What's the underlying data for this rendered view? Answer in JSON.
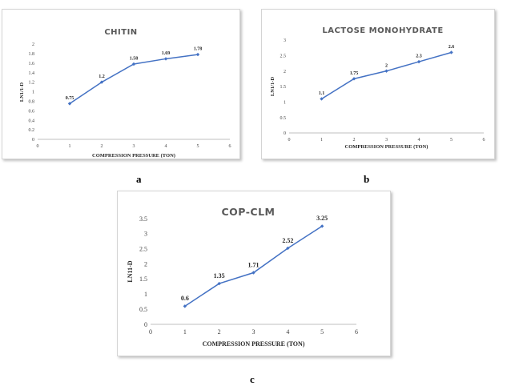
{
  "captions": {
    "a": "a",
    "b": "b",
    "c": "c"
  },
  "chart_data": [
    {
      "type": "line",
      "title": "CHITIN",
      "xlabel": "COMPRESSION PRESSURE (TON)",
      "ylabel": "LN1/1-D",
      "x_ticks": [
        "0",
        "1",
        "2",
        "3",
        "4",
        "5",
        "6"
      ],
      "y_ticks": [
        "0",
        "0.2",
        "0.4",
        "0.6",
        "0.8",
        "1",
        "1.2",
        "1.4",
        "1.6",
        "1.8",
        "2"
      ],
      "xlim": [
        0,
        6
      ],
      "ylim": [
        0,
        2
      ],
      "x": [
        1,
        2,
        3,
        4,
        5
      ],
      "series": [
        {
          "values": [
            0.75,
            1.2,
            1.58,
            1.69,
            1.78
          ],
          "labels": [
            "0.75",
            "1.2",
            "1.58",
            "1.69",
            "1.78"
          ]
        }
      ],
      "color": "#4472c4",
      "grid": false
    },
    {
      "type": "line",
      "title": "LACTOSE MONOHYDRATE",
      "xlabel": "COMPRESSION PRESSURE (TON)",
      "ylabel": "LN1/1-D",
      "x_ticks": [
        "0",
        "1",
        "2",
        "3",
        "4",
        "5",
        "6"
      ],
      "y_ticks": [
        "0",
        "0.5",
        "1",
        "1.5",
        "2",
        "2.5",
        "3"
      ],
      "xlim": [
        0,
        6
      ],
      "ylim": [
        0,
        3
      ],
      "x": [
        1,
        2,
        3,
        4,
        5
      ],
      "series": [
        {
          "values": [
            1.1,
            1.75,
            2,
            2.3,
            2.6
          ],
          "labels": [
            "1.1",
            "1.75",
            "2",
            "2.3",
            "2.6"
          ]
        }
      ],
      "color": "#4472c4",
      "grid": false
    },
    {
      "type": "line",
      "title": "COP-CLM",
      "xlabel": "COMPRESSION PRESSURE (TON)",
      "ylabel": "LN11-D",
      "x_ticks": [
        "0",
        "1",
        "2",
        "3",
        "4",
        "5",
        "6"
      ],
      "y_ticks": [
        "0",
        "0.5",
        "1",
        "1.5",
        "2",
        "2.5",
        "3",
        "3.5"
      ],
      "xlim": [
        0,
        6
      ],
      "ylim": [
        0,
        3.5
      ],
      "x": [
        1,
        2,
        3,
        4,
        5
      ],
      "series": [
        {
          "values": [
            0.6,
            1.35,
            1.71,
            2.52,
            3.25
          ],
          "labels": [
            "0.6",
            "1.35",
            "1.71",
            "2.52",
            "3.25"
          ]
        }
      ],
      "color": "#4472c4",
      "grid": false
    }
  ]
}
